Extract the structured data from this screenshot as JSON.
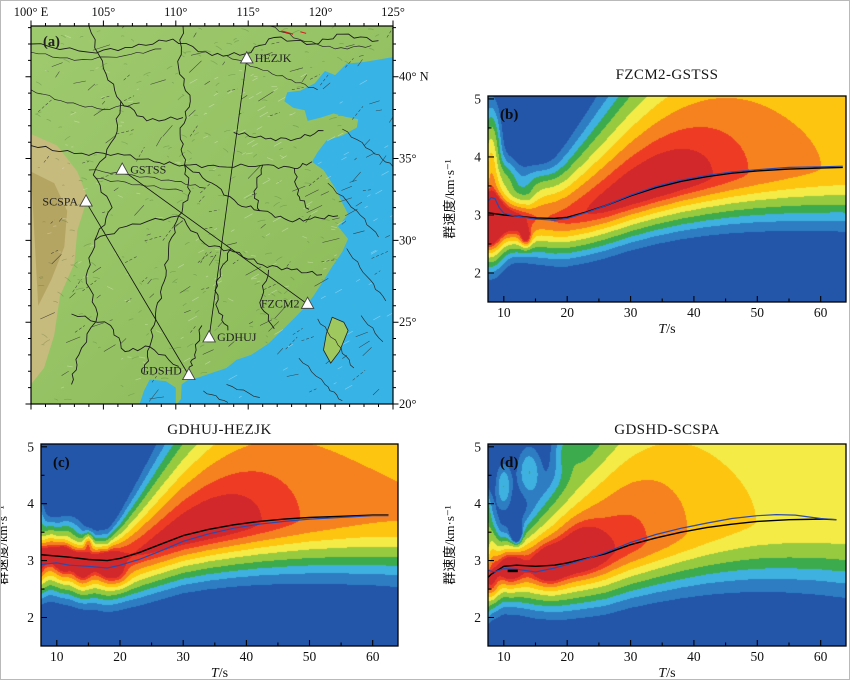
{
  "figure": {
    "map": {
      "panel_label": "(a)",
      "lon_tick_labels": [
        "100° E",
        "105°",
        "110°",
        "115°",
        "120°",
        "125°"
      ],
      "lon_tick_values": [
        100,
        105,
        110,
        115,
        120,
        125
      ],
      "lat_tick_labels": [
        "40° N",
        "35°",
        "30°",
        "25°",
        "20°"
      ],
      "lat_tick_values": [
        40,
        35,
        30,
        25,
        20
      ],
      "extent": {
        "lon": [
          100,
          125
        ],
        "lat": [
          20,
          43.1
        ]
      },
      "stations": [
        {
          "code": "HEZJK",
          "lon": 114.9,
          "lat": 41.1,
          "label_side": "right"
        },
        {
          "code": "GSTSS",
          "lon": 106.3,
          "lat": 34.3,
          "label_side": "right"
        },
        {
          "code": "SCSPA",
          "lon": 103.8,
          "lat": 32.35,
          "label_side": "left"
        },
        {
          "code": "FZCM2",
          "lon": 119.1,
          "lat": 26.1,
          "label_side": "left"
        },
        {
          "code": "GDHUJ",
          "lon": 112.3,
          "lat": 24.05,
          "label_side": "right"
        },
        {
          "code": "GDSHD",
          "lon": 110.9,
          "lat": 21.75,
          "label_side": "leftup"
        }
      ],
      "station_pairs": [
        [
          "GSTSS",
          "FZCM2"
        ],
        [
          "HEZJK",
          "GDHUJ"
        ],
        [
          "SCSPA",
          "GDSHD"
        ]
      ],
      "colors": {
        "sea": "#38b3e6",
        "land": "#94c45e",
        "plateau": "#c9b97e",
        "station_marker": "#ffffff"
      }
    },
    "charts_common": {
      "xlabel": "T/s",
      "ylabel": "群速度/km·s⁻¹",
      "x_ticks": [
        10,
        20,
        30,
        40,
        50,
        60
      ],
      "y_ticks": [
        5,
        4,
        3,
        2
      ],
      "xlim": [
        7.5,
        64
      ],
      "ylim": [
        1.5,
        5.05
      ],
      "heatmap_palette_low_to_high": [
        "#2356a8",
        "#2e7dc3",
        "#3fb1e0",
        "#3cab4d",
        "#97ca3e",
        "#f4eb47",
        "#fdc50f",
        "#f6821f",
        "#ee3c24",
        "#d2282c"
      ],
      "curve_colors": {
        "black_curve": "#000000",
        "blue_curve": "#2b4aad"
      },
      "heatmap_note": "warm colors = high normalized group-velocity energy; no colorbar shown"
    },
    "chart_data": [
      {
        "type": "heatmap",
        "panel_label": "(b)",
        "title": "FZCM2-GSTSS",
        "series": [
          {
            "name": "black_curve",
            "x": [
              6,
              8,
              10,
              12,
              15,
              18,
              20,
              23,
              26,
              30,
              34,
              38,
              42,
              46,
              50,
              55,
              60,
              63.5
            ],
            "y": [
              3.06,
              3.03,
              3.0,
              2.98,
              2.95,
              2.94,
              2.96,
              3.05,
              3.16,
              3.33,
              3.47,
              3.58,
              3.66,
              3.72,
              3.76,
              3.79,
              3.81,
              3.82
            ]
          },
          {
            "name": "blue_curve",
            "x": [
              6.5,
              7.2,
              8,
              8.6,
              9.3,
              10,
              11,
              12,
              15,
              18,
              20,
              23,
              26,
              30,
              34,
              38,
              42,
              46,
              50,
              55,
              60,
              63.5
            ],
            "y": [
              3.17,
              3.2,
              3.3,
              3.28,
              3.12,
              3.03,
              3.0,
              2.98,
              2.93,
              2.91,
              2.94,
              3.04,
              3.16,
              3.34,
              3.49,
              3.6,
              3.68,
              3.74,
              3.78,
              3.82,
              3.83,
              3.84
            ]
          }
        ]
      },
      {
        "type": "heatmap",
        "panel_label": "(c)",
        "title": "GDHUJ-HEZJK",
        "series": [
          {
            "name": "black_curve",
            "x": [
              6,
              8,
              10,
              12,
              15,
              18,
              20,
              23,
              26,
              30,
              34,
              38,
              42,
              46,
              50,
              55,
              60,
              62.5
            ],
            "y": [
              3.12,
              3.1,
              3.08,
              3.06,
              3.02,
              3.0,
              3.04,
              3.14,
              3.27,
              3.44,
              3.55,
              3.63,
              3.69,
              3.73,
              3.76,
              3.78,
              3.8,
              3.8
            ]
          },
          {
            "name": "blue_curve",
            "x": [
              6,
              8,
              10,
              12,
              15,
              18,
              20,
              23,
              26,
              30,
              34,
              38,
              42,
              46,
              50,
              55,
              60,
              62.5
            ],
            "y": [
              2.9,
              2.94,
              2.96,
              2.92,
              2.9,
              2.87,
              2.92,
              3.02,
              3.15,
              3.34,
              3.47,
              3.57,
              3.64,
              3.69,
              3.73,
              3.76,
              3.79,
              3.79
            ]
          }
        ]
      },
      {
        "type": "heatmap",
        "panel_label": "(d)",
        "title": "GDSHD-SCSPA",
        "series": [
          {
            "name": "black_curve",
            "x": [
              6,
              7,
              8,
              10,
              12,
              15,
              18,
              20,
              23,
              26,
              30,
              34,
              38,
              42,
              46,
              50,
              55,
              60,
              62.5
            ],
            "y": [
              2.55,
              2.65,
              2.76,
              2.9,
              2.92,
              2.9,
              2.92,
              2.96,
              3.04,
              3.12,
              3.28,
              3.4,
              3.5,
              3.58,
              3.64,
              3.69,
              3.72,
              3.73,
              3.72
            ]
          },
          {
            "name": "blue_curve",
            "x": [
              6,
              6.8,
              7.5,
              8.5,
              10,
              12,
              15,
              18,
              20,
              23,
              26,
              30,
              34,
              38,
              42,
              46,
              50,
              53,
              56,
              60,
              62.5
            ],
            "y": [
              3.12,
              2.95,
              2.83,
              2.8,
              2.86,
              2.85,
              2.8,
              2.87,
              2.93,
              3.03,
              3.14,
              3.32,
              3.46,
              3.57,
              3.66,
              3.74,
              3.79,
              3.81,
              3.8,
              3.74,
              3.72
            ]
          }
        ],
        "marker_dash": {
          "x": [
            10.6,
            12.2
          ],
          "y": 2.82
        }
      }
    ]
  }
}
